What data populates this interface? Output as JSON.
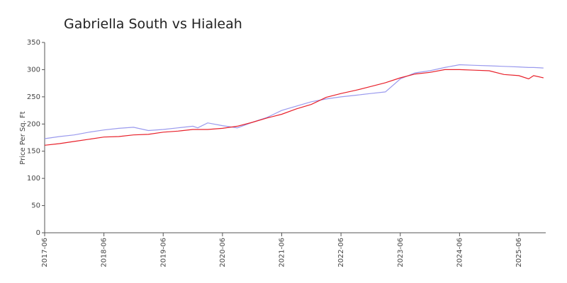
{
  "chart_data": {
    "type": "line",
    "title": "Gabriella South vs Hialeah",
    "y_label": "Price Per Sq. Ft",
    "x": [
      "2017-06",
      "2017-09",
      "2017-12",
      "2018-03",
      "2018-06",
      "2018-09",
      "2018-12",
      "2019-03",
      "2019-06",
      "2019-09",
      "2019-12",
      "2020-01",
      "2020-03",
      "2020-06",
      "2020-09",
      "2020-12",
      "2021-03",
      "2021-06",
      "2021-09",
      "2021-12",
      "2022-03",
      "2022-06",
      "2022-09",
      "2022-12",
      "2023-03",
      "2023-06",
      "2023-09",
      "2023-12",
      "2024-03",
      "2024-06",
      "2024-09",
      "2024-12",
      "2025-03",
      "2025-06",
      "2025-08",
      "2025-09",
      "2025-11"
    ],
    "series": [
      {
        "color": "#9a9aee",
        "values": [
          173,
          177,
          180,
          185,
          189,
          192,
          194,
          188,
          190,
          193,
          196,
          193,
          202,
          197,
          193,
          203,
          212,
          225,
          233,
          241,
          246,
          250,
          253,
          256,
          259,
          283,
          294,
          298,
          304,
          309,
          308,
          307,
          306,
          305,
          304,
          304,
          303
        ]
      },
      {
        "color": "#e8202a",
        "values": [
          161,
          164,
          168,
          172,
          176,
          177,
          180,
          181,
          185,
          187,
          190,
          190,
          190,
          192,
          196,
          203,
          211,
          218,
          228,
          236,
          249,
          256,
          262,
          269,
          276,
          285,
          292,
          295,
          300,
          300,
          299,
          298,
          291,
          289,
          283,
          289,
          285
        ]
      }
    ],
    "ylim": [
      0,
      350
    ],
    "yticks": [
      0,
      50,
      100,
      150,
      200,
      250,
      300,
      350
    ],
    "xticks": [
      "2017-06",
      "2018-06",
      "2019-06",
      "2020-06",
      "2021-06",
      "2022-06",
      "2023-06",
      "2024-06",
      "2025-06"
    ]
  }
}
